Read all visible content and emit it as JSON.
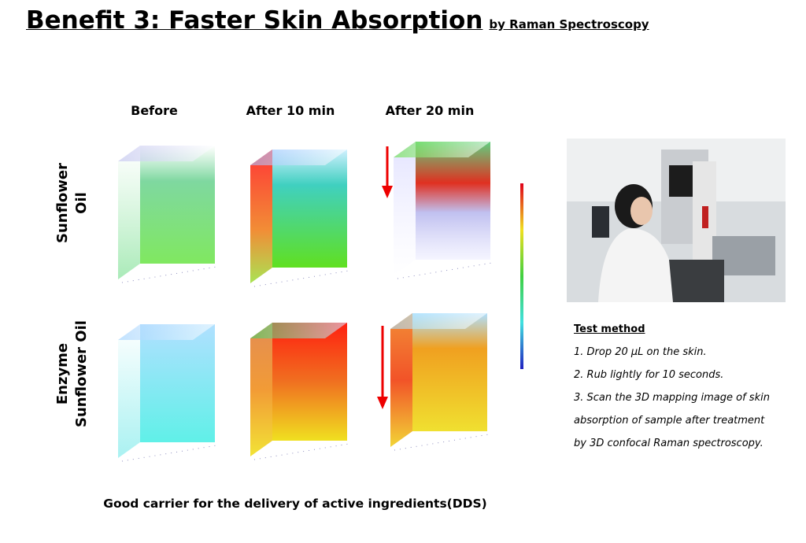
{
  "header": {
    "title": "Benefit 3: Faster Skin Absorption",
    "subtitle": "by Raman Spectroscopy"
  },
  "columns": [
    "Before",
    "After 10 min",
    "After 20 min"
  ],
  "rows": [
    [
      "Sunflower",
      "Oil"
    ],
    [
      "Enzyme",
      "Sunflower Oil"
    ]
  ],
  "test_method": {
    "title": "Test method",
    "steps": [
      "1. Drop 20 μL on the skin.",
      "2. Rub lightly for 10 seconds.",
      "3. Scan the 3D mapping image of skin absorption  of sample after treatment by 3D confocal Raman spectroscopy."
    ]
  },
  "caption": "Good carrier for the delivery of active ingredients(DDS)"
}
